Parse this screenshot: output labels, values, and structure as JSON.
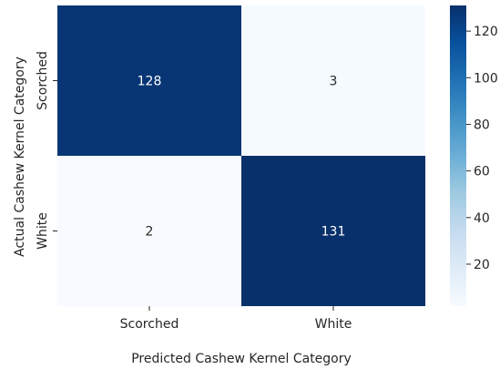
{
  "chart_data": {
    "type": "heatmap",
    "title": "",
    "xlabel": "Predicted Cashew Kernel Category",
    "ylabel": "Actual Cashew Kernel Category",
    "x_categories": [
      "Scorched",
      "White"
    ],
    "y_categories": [
      "Scorched",
      "White"
    ],
    "values": [
      [
        128,
        3
      ],
      [
        2,
        131
      ]
    ],
    "colormap": "Blues",
    "colorbar": {
      "min": 2,
      "max": 131,
      "ticks": [
        20,
        40,
        60,
        80,
        100,
        120
      ],
      "tick_labels": [
        "20",
        "40",
        "60",
        "80",
        "100",
        "120"
      ]
    },
    "colors": {
      "low": "#f7fbff",
      "high": "#08306b"
    }
  }
}
